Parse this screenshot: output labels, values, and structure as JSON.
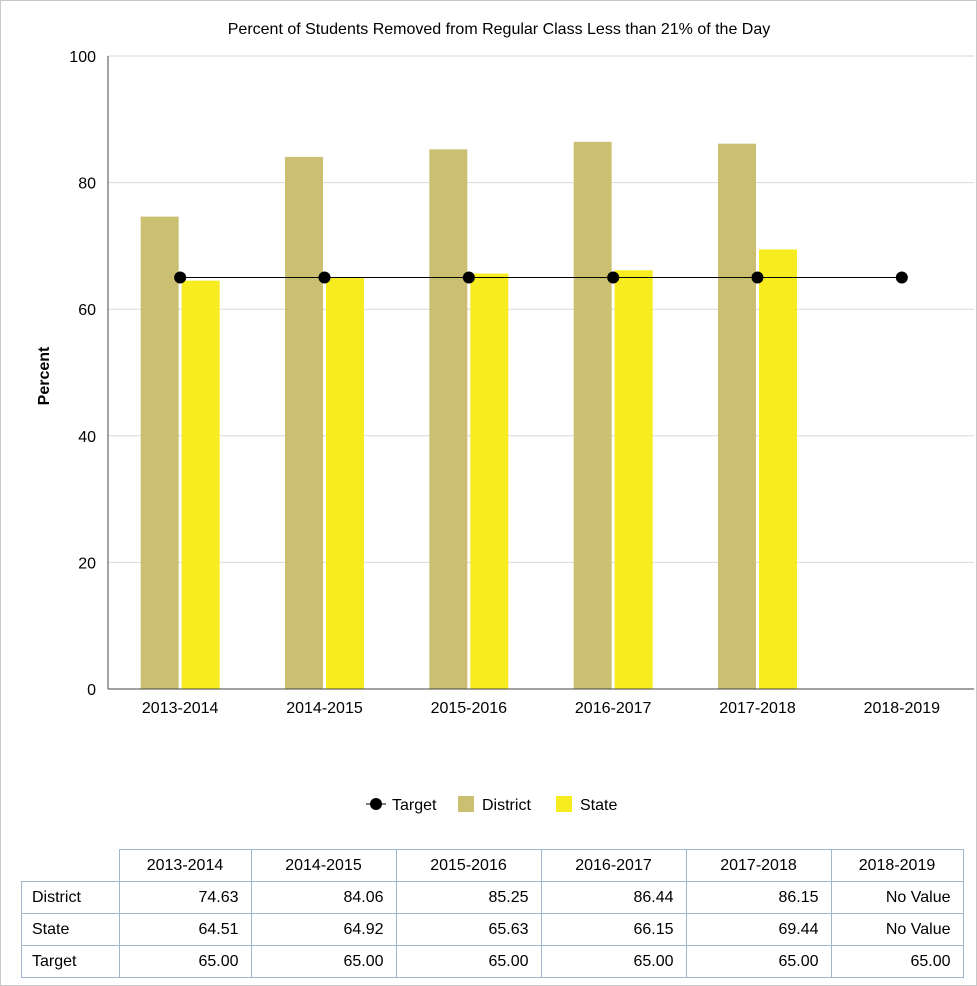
{
  "chart_data": {
    "type": "bar",
    "title": "Percent of Students Removed from Regular Class Less than 21% of the Day",
    "xlabel": "",
    "ylabel": "Percent",
    "ylim": [
      0,
      100
    ],
    "yticks": [
      0,
      20,
      40,
      60,
      80,
      100
    ],
    "grid": true,
    "legend_position": "bottom",
    "categories": [
      "2013-2014",
      "2014-2015",
      "2015-2016",
      "2016-2017",
      "2017-2018",
      "2018-2019"
    ],
    "series": [
      {
        "name": "District",
        "type": "bar",
        "color": "#cbbf72",
        "values": [
          74.63,
          84.06,
          85.25,
          86.44,
          86.15,
          null
        ]
      },
      {
        "name": "State",
        "type": "bar",
        "color": "#f7ec20",
        "values": [
          64.51,
          64.92,
          65.63,
          66.15,
          69.44,
          null
        ]
      },
      {
        "name": "Target",
        "type": "line",
        "color": "#000000",
        "values": [
          65.0,
          65.0,
          65.0,
          65.0,
          65.0,
          65.0
        ]
      }
    ]
  },
  "legend": {
    "items": [
      "Target",
      "District",
      "State"
    ]
  },
  "table": {
    "columns": [
      "2013-2014",
      "2014-2015",
      "2015-2016",
      "2016-2017",
      "2017-2018",
      "2018-2019"
    ],
    "rows": [
      {
        "label": "District",
        "values": [
          "74.63",
          "84.06",
          "85.25",
          "86.44",
          "86.15",
          "No Value"
        ]
      },
      {
        "label": "State",
        "values": [
          "64.51",
          "64.92",
          "65.63",
          "66.15",
          "69.44",
          "No Value"
        ]
      },
      {
        "label": "Target",
        "values": [
          "65.00",
          "65.00",
          "65.00",
          "65.00",
          "65.00",
          "65.00"
        ]
      }
    ]
  }
}
